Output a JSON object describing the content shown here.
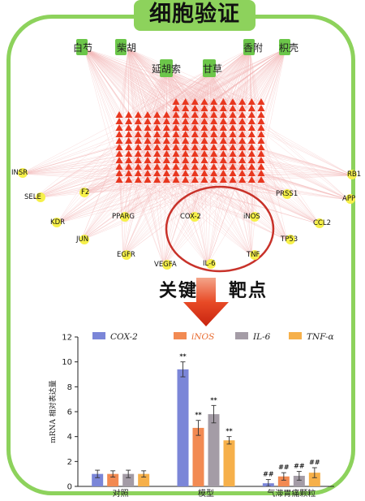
{
  "title": "细胞验证",
  "herbs": {
    "h1": "白芍",
    "h2": "柴胡",
    "h3": "延胡索",
    "h4": "甘草",
    "h5": "香附",
    "h6": "枳壳"
  },
  "targets": {
    "insr": "INSR",
    "rb1": "RB1",
    "sele": "SELE",
    "f2": "F2",
    "prss1": "PRSS1",
    "app": "APP",
    "kdr": "KDR",
    "pparg": "PPARG",
    "cox2": "COX-2",
    "inos": "iNOS",
    "ccl2": "CCL2",
    "jun": "JUN",
    "tp53": "TP53",
    "egfr": "EGFR",
    "tnf": "TNF",
    "vegfa": "VEGFA",
    "il6": "IL-6"
  },
  "key_label": {
    "left": "关键",
    "right": "靶点"
  },
  "colors": {
    "frame": "#8dd25c",
    "herb_node": "#6cc64a",
    "compound_node": "#e8371f",
    "target_node": "#f6f04a",
    "edge": "#f2b6b6",
    "highlight_circle": "#c8322a",
    "arrow": "#e23b1e"
  },
  "chart_data": {
    "type": "bar",
    "categories": [
      "对照",
      "模型",
      "气滞胃痛颗粒"
    ],
    "series": [
      {
        "name": "COX-2",
        "color": "#7b86d8",
        "values": [
          1.0,
          9.4,
          0.25
        ],
        "errors": [
          0.3,
          0.6,
          0.3
        ],
        "marks": [
          "",
          "**",
          "##"
        ]
      },
      {
        "name": "iNOS",
        "color": "#f28a52",
        "values": [
          1.0,
          4.7,
          0.8
        ],
        "errors": [
          0.25,
          0.6,
          0.3
        ],
        "marks": [
          "",
          "**",
          "##"
        ]
      },
      {
        "name": "IL-6",
        "color": "#a49ca6",
        "values": [
          1.0,
          5.8,
          0.85
        ],
        "errors": [
          0.3,
          0.7,
          0.35
        ],
        "marks": [
          "",
          "**",
          "##"
        ]
      },
      {
        "name": "TNF-α",
        "color": "#f6b04a",
        "values": [
          1.0,
          3.7,
          1.1
        ],
        "errors": [
          0.25,
          0.3,
          0.4
        ],
        "marks": [
          "",
          "**",
          "##"
        ]
      }
    ],
    "ylabel": "mRNA 相对表达量",
    "xlabel": "",
    "ylim": [
      0,
      12
    ],
    "yticks": [
      0,
      2,
      4,
      6,
      8,
      10,
      12
    ],
    "legend": "top"
  }
}
